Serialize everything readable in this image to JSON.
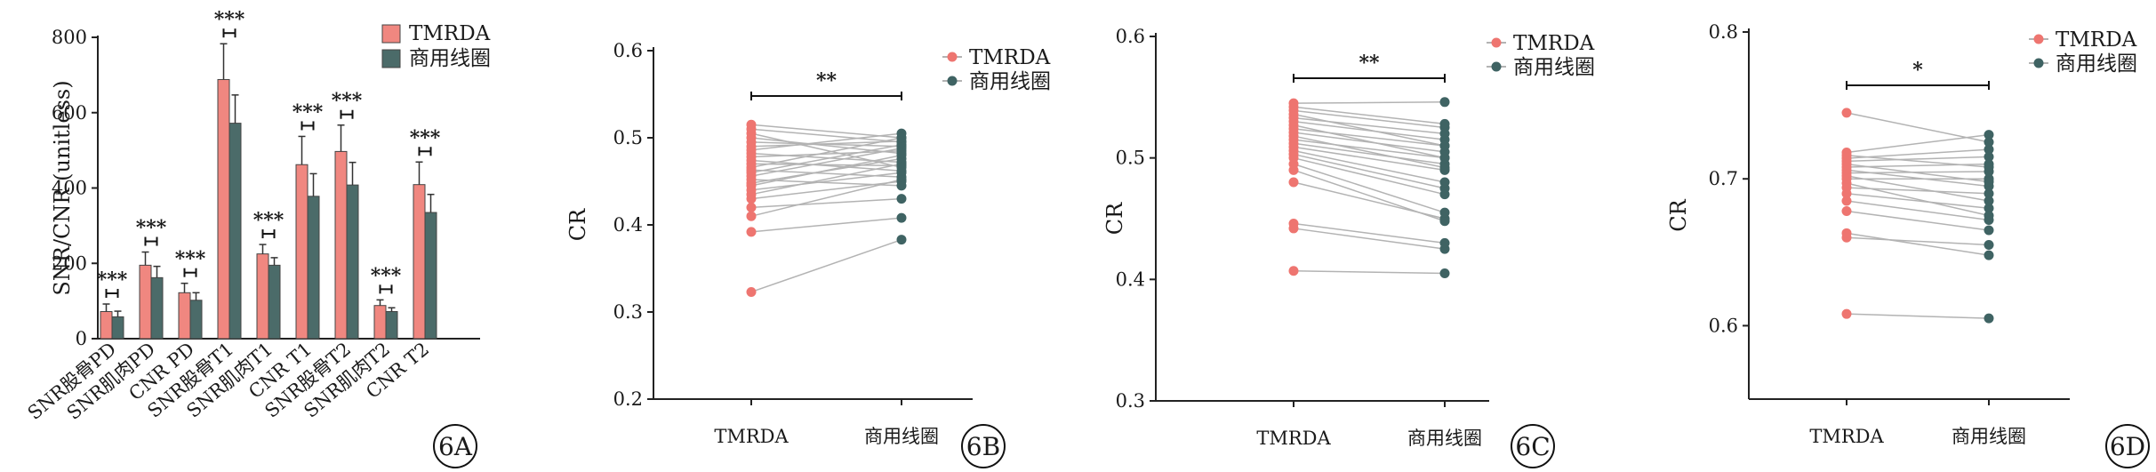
{
  "colors": {
    "tmrda": "#ee7570",
    "commercial": "#3f6363",
    "bar_tmrda": "#f08780",
    "bar_commercial": "#4b6b69",
    "link": "#b3b3b3"
  },
  "chart_data": [
    {
      "panel": "6A",
      "type": "bar",
      "ylabel": "SNR/CNR (unitless)",
      "ylim": [
        0,
        800
      ],
      "yticks": [
        0,
        200,
        400,
        600,
        800
      ],
      "categories": [
        "SNR股骨PD",
        "SNR肌肉PD",
        "CNR PD",
        "SNR股骨T1",
        "SNR肌肉T1",
        "CNR T1",
        "SNR股骨T2",
        "SNR肌肉T2",
        "CNR T2"
      ],
      "series": [
        {
          "name": "TMRDA",
          "values": [
            72,
            195,
            122,
            688,
            225,
            462,
            497,
            88,
            409
          ],
          "errors": [
            20,
            35,
            25,
            95,
            25,
            75,
            70,
            15,
            60
          ]
        },
        {
          "name": "商用线圈",
          "values": [
            58,
            162,
            102,
            572,
            195,
            378,
            408,
            72,
            335
          ],
          "errors": [
            15,
            30,
            20,
            75,
            20,
            60,
            60,
            10,
            48
          ]
        }
      ],
      "significance": [
        "***",
        "***",
        "***",
        "***",
        "***",
        "***",
        "***",
        "***",
        "***"
      ],
      "legend": "top-right",
      "grid": false
    },
    {
      "panel": "6B",
      "type": "scatter",
      "ylabel": "CR",
      "ylim": [
        0.2,
        0.6
      ],
      "yticks": [
        "0.2",
        "0.3",
        "0.4",
        "0.5",
        "0.6"
      ],
      "categories": [
        "TMRDA",
        "商用线圈"
      ],
      "series": [
        {
          "name": "TMRDA",
          "values": [
            0.323,
            0.392,
            0.41,
            0.42,
            0.43,
            0.435,
            0.44,
            0.445,
            0.448,
            0.452,
            0.456,
            0.46,
            0.463,
            0.466,
            0.47,
            0.474,
            0.478,
            0.482,
            0.486,
            0.49,
            0.495,
            0.5,
            0.505,
            0.51,
            0.515
          ]
        },
        {
          "name": "商用线圈",
          "values": [
            0.383,
            0.408,
            0.452,
            0.43,
            0.45,
            0.47,
            0.46,
            0.48,
            0.476,
            0.445,
            0.488,
            0.492,
            0.455,
            0.5,
            0.468,
            0.462,
            0.485,
            0.472,
            0.505,
            0.496,
            0.49,
            0.482,
            0.466,
            0.495,
            0.5
          ]
        }
      ],
      "significance": "**",
      "legend": "top-right",
      "grid": false
    },
    {
      "panel": "6C",
      "type": "scatter",
      "ylabel": "CR",
      "ylim": [
        0.3,
        0.6
      ],
      "yticks": [
        "0.3",
        "0.4",
        "0.5",
        "0.6"
      ],
      "categories": [
        "TMRDA",
        "商用线圈"
      ],
      "series": [
        {
          "name": "TMRDA",
          "values": [
            0.407,
            0.442,
            0.446,
            0.48,
            0.49,
            0.495,
            0.5,
            0.503,
            0.506,
            0.509,
            0.512,
            0.515,
            0.518,
            0.521,
            0.524,
            0.527,
            0.53,
            0.533,
            0.536,
            0.539,
            0.542,
            0.545
          ]
        },
        {
          "name": "商用线圈",
          "values": [
            0.405,
            0.425,
            0.43,
            0.45,
            0.448,
            0.455,
            0.47,
            0.475,
            0.48,
            0.49,
            0.495,
            0.5,
            0.492,
            0.505,
            0.51,
            0.5,
            0.515,
            0.52,
            0.51,
            0.525,
            0.528,
            0.546
          ]
        }
      ],
      "significance": "**",
      "legend": "top-right",
      "grid": false
    },
    {
      "panel": "6D",
      "type": "scatter",
      "ylabel": "CR",
      "ylim": [
        0.55,
        0.8
      ],
      "yticks": [
        "0.6",
        "0.7",
        "0.8"
      ],
      "categories": [
        "TMRDA",
        "商用线圈"
      ],
      "series": [
        {
          "name": "TMRDA",
          "values": [
            0.608,
            0.66,
            0.663,
            0.678,
            0.685,
            0.69,
            0.694,
            0.697,
            0.7,
            0.702,
            0.704,
            0.706,
            0.708,
            0.71,
            0.712,
            0.714,
            0.716,
            0.718,
            0.745
          ]
        },
        {
          "name": "商用线圈",
          "values": [
            0.605,
            0.655,
            0.648,
            0.665,
            0.672,
            0.68,
            0.69,
            0.675,
            0.7,
            0.685,
            0.705,
            0.695,
            0.71,
            0.698,
            0.715,
            0.72,
            0.708,
            0.73,
            0.725
          ]
        }
      ],
      "significance": "*",
      "legend": "top-right",
      "grid": false
    }
  ]
}
